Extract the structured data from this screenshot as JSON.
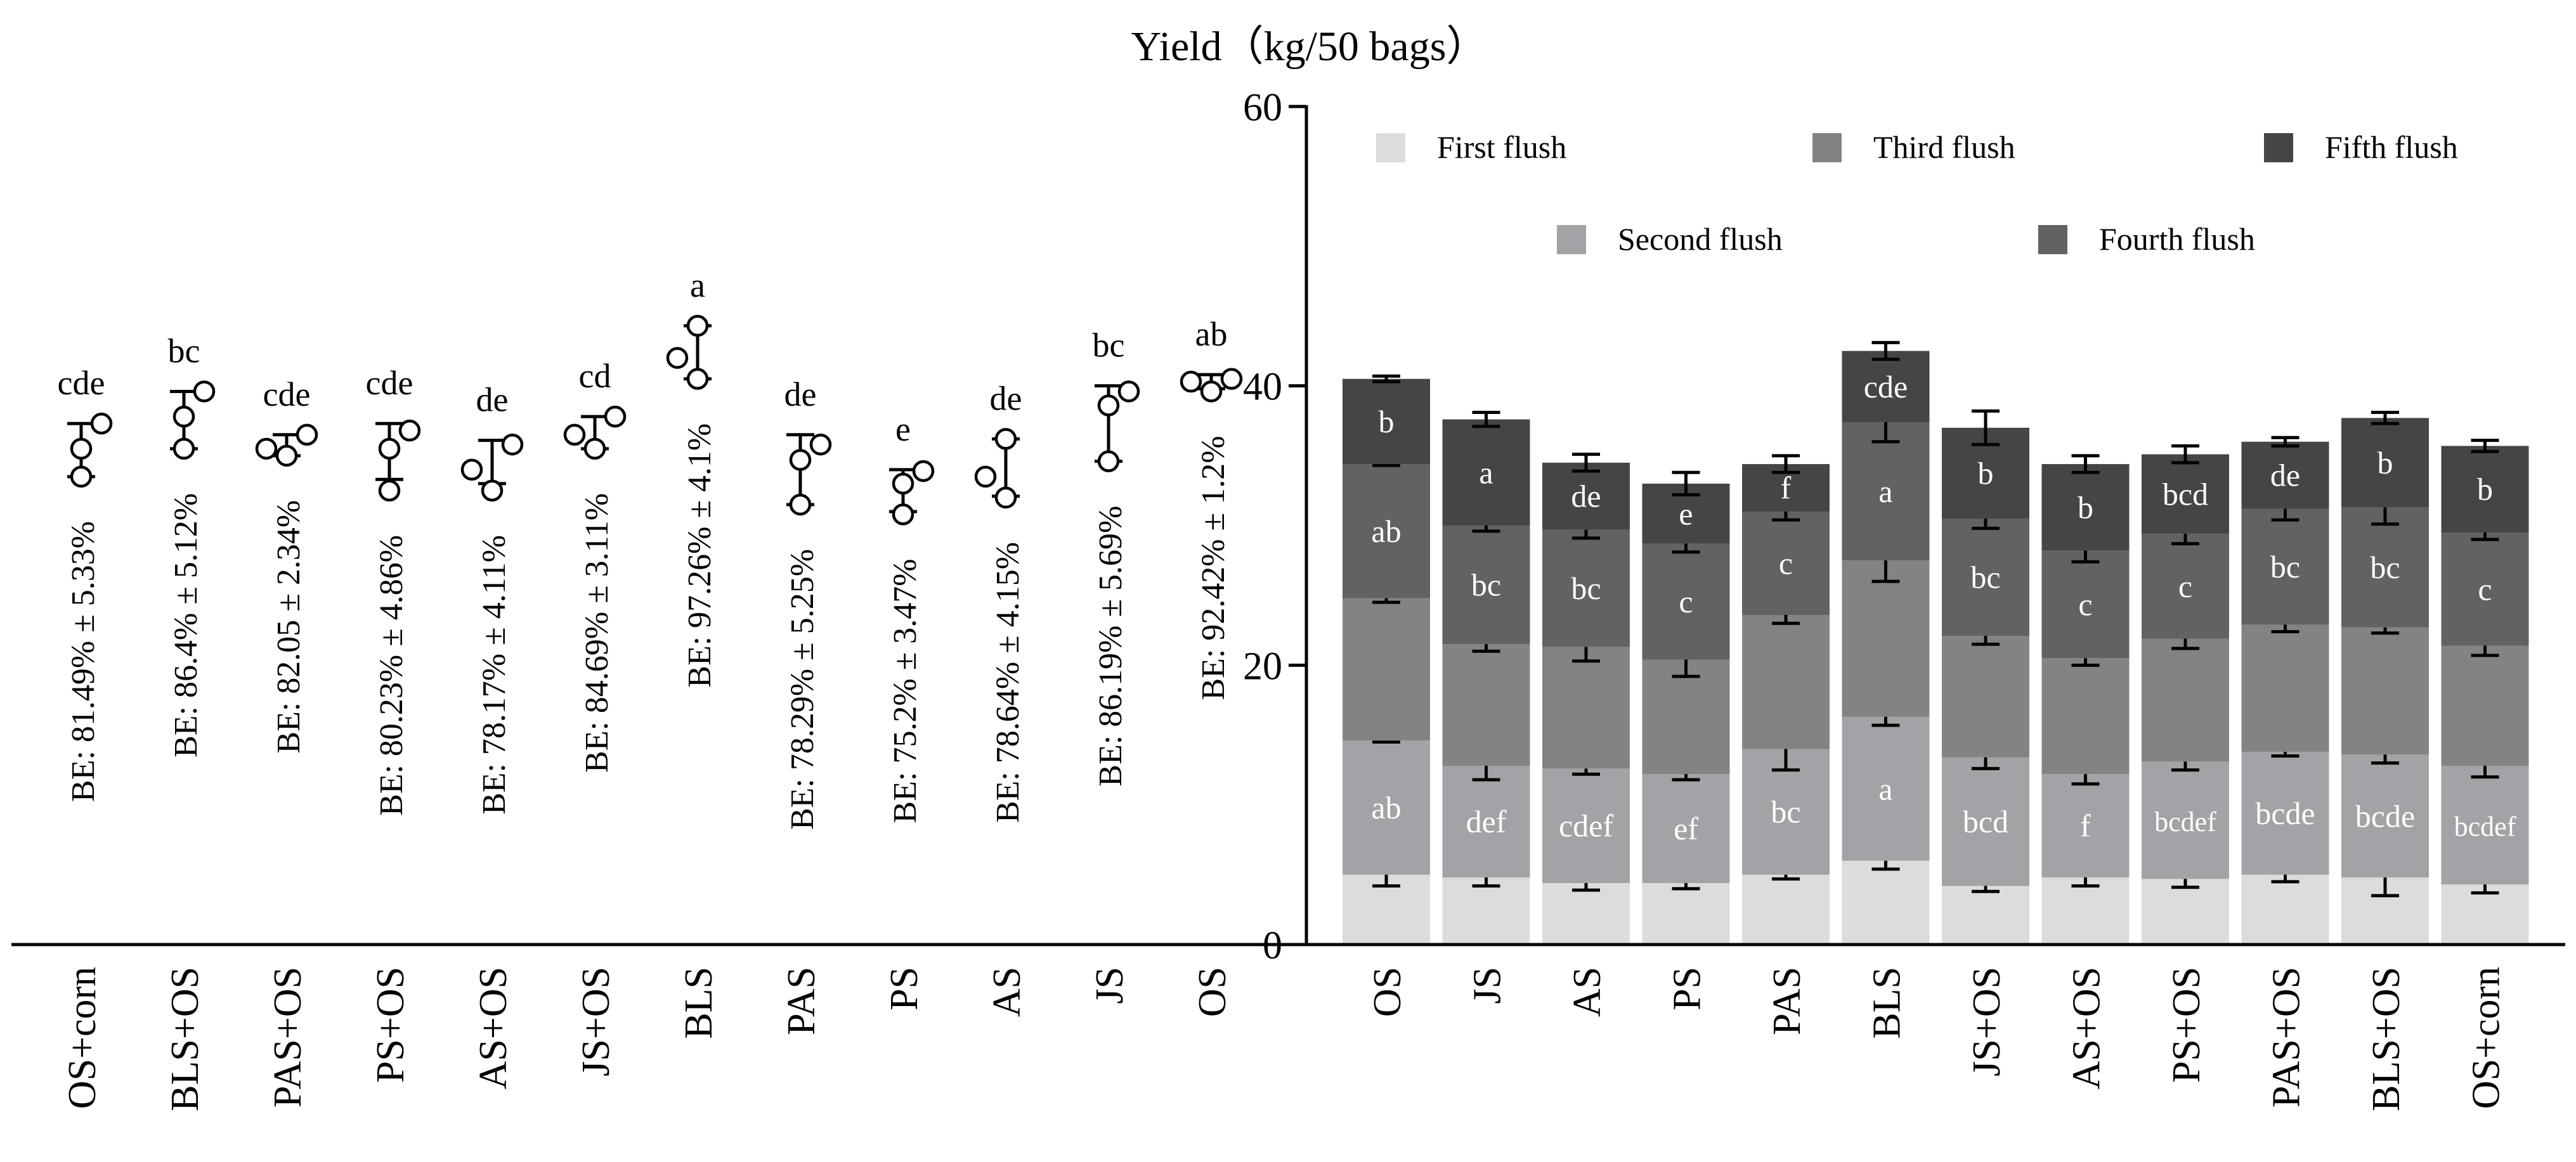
{
  "title": "Yield（kg/50 bags）",
  "colors": {
    "first": "#dcdcdc",
    "second": "#a3a3a7",
    "third": "#838383",
    "fourth": "#626262",
    "fifth": "#454545",
    "axis": "#000000",
    "letter_on_bar": "#ffffff"
  },
  "chart_data": [
    {
      "type": "scatter",
      "subtype": "dot-plot with mean and SD bars",
      "title": "",
      "xlabel": "",
      "ylabel": "",
      "ylim": [
        0,
        60
      ],
      "shared_y_axis_with": "stacked bar chart",
      "categories": [
        "OS+corn",
        "BLS+OS",
        "PAS+OS",
        "PS+OS",
        "AS+OS",
        "JS+OS",
        "BLS",
        "PAS",
        "PS",
        "AS",
        "JS",
        "OS"
      ],
      "points": [
        [
          33.5,
          35.5,
          37.3
        ],
        [
          35.5,
          37.8,
          39.6
        ],
        [
          35.0,
          35.5,
          36.5
        ],
        [
          32.5,
          35.5,
          36.8
        ],
        [
          32.5,
          34.0,
          35.8
        ],
        [
          35.5,
          36.5,
          37.8
        ],
        [
          40.5,
          42.0,
          44.3
        ],
        [
          31.5,
          34.7,
          35.8
        ],
        [
          30.8,
          33.0,
          33.9
        ],
        [
          32.0,
          33.5,
          36.2
        ],
        [
          34.6,
          38.6,
          39.6
        ],
        [
          39.6,
          40.3,
          40.5
        ]
      ],
      "sd_bars": [
        [
          33.5,
          37.3
        ],
        [
          35.5,
          39.6
        ],
        [
          35.0,
          36.5
        ],
        [
          33.3,
          37.3
        ],
        [
          33.0,
          36.1
        ],
        [
          35.5,
          37.8
        ],
        [
          40.5,
          44.3
        ],
        [
          31.5,
          36.5
        ],
        [
          31.0,
          34.0
        ],
        [
          32.1,
          36.2
        ],
        [
          34.6,
          40.0
        ],
        [
          39.8,
          40.8
        ]
      ],
      "letters": [
        "cde",
        "bc",
        "cde",
        "cde",
        "de",
        "cd",
        "a",
        "de",
        "e",
        "de",
        "bc",
        "ab"
      ],
      "be_labels": [
        "BE: 81.49% ± 5.33%",
        "BE: 86.4% ± 5.12%",
        "BE: 82.05 ± 2.34%",
        "BE: 80.23% ± 4.86%",
        "BE: 78.17% ± 4.11%",
        "BE: 84.69% ± 3.11%",
        "BE: 97.26% ± 4.1%",
        "BE: 78.29% ± 5.25%",
        "BE: 75.2% ± 3.47%",
        "BE: 78.64% ± 4.15%",
        "BE: 86.19% ± 5.69%",
        "BE: 92.42% ± 1.2%"
      ]
    },
    {
      "type": "bar",
      "stacked": true,
      "ylim": [
        0,
        60
      ],
      "yticks": [
        "0",
        "20",
        "40",
        "60"
      ],
      "legend_position": "top",
      "categories": [
        "OS",
        "JS",
        "AS",
        "PS",
        "PAS",
        "BLS",
        "JS+OS",
        "AS+OS",
        "PS+OS",
        "PAS+OS",
        "BLS+OS",
        "OS+corn"
      ],
      "series": [
        {
          "name": "First flush",
          "values": [
            5.0,
            4.8,
            4.4,
            4.4,
            5.0,
            6.0,
            4.2,
            4.8,
            4.7,
            5.0,
            4.8,
            4.3
          ],
          "errors": [
            0.8,
            0.6,
            0.5,
            0.4,
            0.3,
            0.6,
            0.4,
            0.6,
            0.6,
            0.5,
            1.3,
            0.6
          ],
          "letters": [
            "",
            "",
            "",
            "",
            "",
            "",
            "",
            "",
            "",
            "",
            "",
            ""
          ]
        },
        {
          "name": "Second flush",
          "values": [
            9.6,
            8.0,
            8.2,
            7.8,
            9.0,
            10.3,
            9.2,
            7.4,
            8.4,
            8.8,
            8.8,
            8.5
          ],
          "errors": [
            0.1,
            1.0,
            0.4,
            0.4,
            1.5,
            0.6,
            0.8,
            0.7,
            0.6,
            0.3,
            0.6,
            0.8
          ],
          "letters": [
            "ab",
            "def",
            "cdef",
            "ef",
            "bc",
            "a",
            "bcd",
            "f",
            "bcdef",
            "bcde",
            "bcde",
            "bcdef"
          ]
        },
        {
          "name": "Third flush",
          "values": [
            10.2,
            8.7,
            8.7,
            8.2,
            9.6,
            11.2,
            8.7,
            8.3,
            8.8,
            9.1,
            9.1,
            8.6
          ],
          "errors": [
            0.3,
            0.5,
            1.0,
            1.2,
            0.6,
            1.5,
            0.6,
            0.5,
            0.7,
            0.5,
            0.4,
            0.7
          ],
          "letters": [
            "",
            "",
            "",
            "",
            "",
            "",
            "",
            "",
            "",
            "",
            "",
            ""
          ]
        },
        {
          "name": "Fourth flush",
          "values": [
            9.6,
            8.5,
            8.4,
            8.3,
            7.4,
            9.9,
            8.4,
            7.7,
            7.5,
            8.3,
            8.6,
            8.1
          ],
          "errors": [
            0.1,
            0.4,
            0.6,
            0.6,
            0.6,
            1.4,
            0.7,
            0.8,
            0.7,
            0.8,
            1.2,
            0.5
          ],
          "letters": [
            "ab",
            "bc",
            "bc",
            "c",
            "c",
            "a",
            "bc",
            "c",
            "c",
            "bc",
            "bc",
            "c"
          ]
        },
        {
          "name": "Fifth flush",
          "values": [
            6.1,
            7.6,
            4.8,
            4.3,
            3.4,
            5.1,
            6.5,
            6.2,
            5.7,
            4.8,
            6.4,
            6.2
          ],
          "errors": [
            0.2,
            0.5,
            0.6,
            0.8,
            0.6,
            0.6,
            1.2,
            0.6,
            0.6,
            0.3,
            0.4,
            0.4
          ],
          "letters": [
            "b",
            "a",
            "de",
            "e",
            "f",
            "cde",
            "b",
            "b",
            "bcd",
            "de",
            "b",
            "b"
          ]
        }
      ]
    }
  ]
}
